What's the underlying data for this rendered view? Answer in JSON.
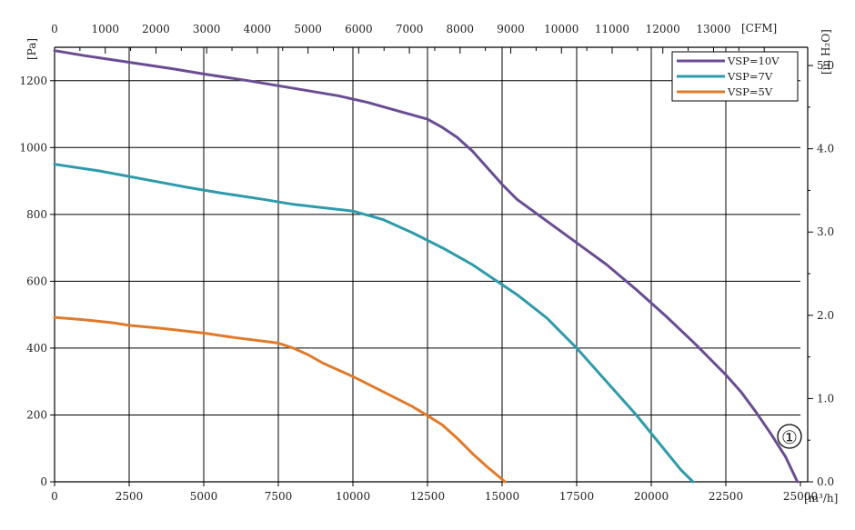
{
  "chart_data": {
    "type": "line",
    "x_unit_bottom": "[m³/h]",
    "x_unit_top": "[CFM]",
    "y_unit_left": "[Pa]",
    "y_unit_right": "[in H₂O]",
    "xlim": [
      0,
      25000
    ],
    "ylim": [
      0,
      1300
    ],
    "x_ticks": [
      0,
      2500,
      5000,
      7500,
      10000,
      12500,
      15000,
      17500,
      20000,
      22500,
      25000
    ],
    "x_tick_labels": [
      "0",
      "2500",
      "5000",
      "7500",
      "10000",
      "12500",
      "15000",
      "17500",
      "20000",
      "22500",
      "25000"
    ],
    "y_ticks": [
      0,
      200,
      400,
      600,
      800,
      1000,
      1200
    ],
    "y_tick_labels": [
      "0",
      "200",
      "400",
      "600",
      "800",
      "1000",
      "1200"
    ],
    "top_ticks": [
      0,
      1000,
      2000,
      3000,
      4000,
      5000,
      6000,
      7000,
      8000,
      9000,
      10000,
      11000,
      12000,
      13000
    ],
    "top_tick_labels": [
      "0",
      "1000",
      "2000",
      "3000",
      "4000",
      "5000",
      "6000",
      "7000",
      "8000",
      "9000",
      "10000",
      "11000",
      "12000",
      "13000"
    ],
    "right_ticks": [
      0,
      1.0,
      2.0,
      3.0,
      4.0,
      5.0
    ],
    "right_tick_labels": [
      "0.0",
      "1.0",
      "2.0",
      "3.0",
      "4.0",
      "5.0"
    ],
    "grid": true,
    "legend_position": "top-right",
    "annotation": "①",
    "series": [
      {
        "name": "VSP=10V",
        "color": "#6a4c93",
        "x": [
          0,
          1000,
          2500,
          4000,
          5000,
          6500,
          7500,
          8500,
          9500,
          10500,
          11500,
          12500,
          13000,
          13500,
          14000,
          14500,
          15000,
          15500,
          16500,
          17500,
          18500,
          19500,
          20500,
          21500,
          22500,
          23000,
          23500,
          24000,
          24500,
          24900
        ],
        "y": [
          1290,
          1275,
          1255,
          1235,
          1220,
          1200,
          1185,
          1170,
          1155,
          1135,
          1110,
          1085,
          1060,
          1030,
          990,
          940,
          890,
          845,
          780,
          715,
          650,
          575,
          495,
          410,
          320,
          270,
          210,
          145,
          75,
          0
        ]
      },
      {
        "name": "VSP=7V",
        "color": "#2e9aac",
        "x": [
          0,
          1500,
          3000,
          4500,
          5500,
          7000,
          8000,
          9000,
          10000,
          11000,
          12000,
          13000,
          14000,
          15000,
          15500,
          16500,
          17500,
          18500,
          19500,
          20500,
          21000,
          21400
        ],
        "y": [
          950,
          930,
          905,
          880,
          865,
          845,
          830,
          820,
          810,
          785,
          745,
          700,
          650,
          590,
          560,
          490,
          400,
          300,
          200,
          90,
          35,
          0
        ]
      },
      {
        "name": "VSP=5V",
        "color": "#e07a2a",
        "x": [
          0,
          1000,
          2000,
          2500,
          3500,
          5000,
          6000,
          7500,
          8000,
          8500,
          9000,
          10000,
          11000,
          12000,
          12500,
          13000,
          13500,
          14000,
          14500,
          15100
        ],
        "y": [
          492,
          485,
          475,
          468,
          460,
          445,
          432,
          415,
          400,
          380,
          355,
          315,
          270,
          225,
          198,
          170,
          130,
          85,
          45,
          0
        ]
      }
    ]
  }
}
